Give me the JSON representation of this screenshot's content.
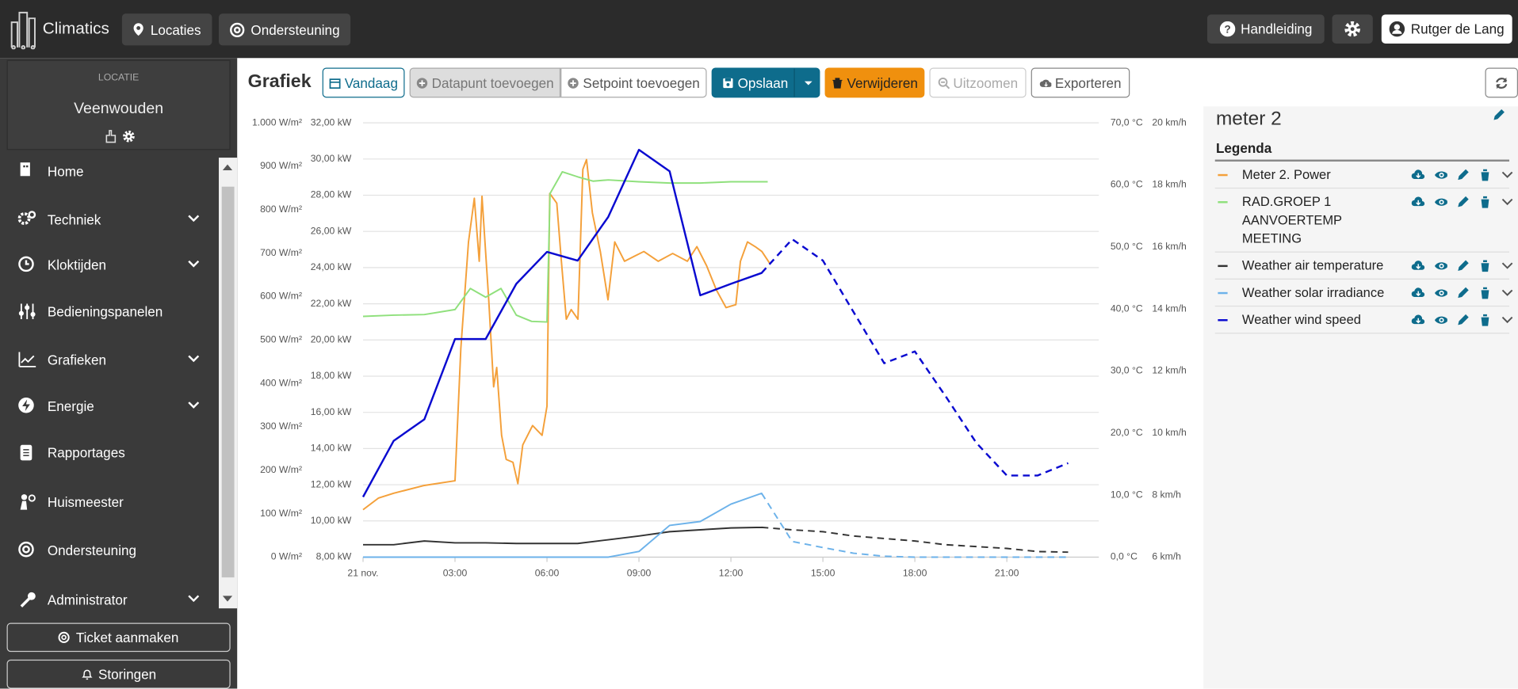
{
  "header": {
    "brand": "Climatics",
    "nav": [
      "Locaties",
      "Ondersteuning"
    ],
    "help": "Handleiding",
    "user": "Rutger de Lang"
  },
  "sidebar": {
    "location_label": "LOCATIE",
    "location": "Veenwouden",
    "menu": [
      {
        "label": "Home",
        "expandable": false
      },
      {
        "label": "Techniek",
        "expandable": true
      },
      {
        "label": "Kloktijden",
        "expandable": true
      },
      {
        "label": "Bedieningspanelen",
        "expandable": false
      },
      {
        "label": "Grafieken",
        "expandable": true
      },
      {
        "label": "Energie",
        "expandable": true
      },
      {
        "label": "Rapportages",
        "expandable": false
      },
      {
        "label": "Huismeester",
        "expandable": false
      },
      {
        "label": "Ondersteuning",
        "expandable": false
      },
      {
        "label": "Administrator",
        "expandable": true
      }
    ],
    "actions": [
      "Ticket aanmaken",
      "Storingen"
    ]
  },
  "toolbar": {
    "title": "Grafiek",
    "buttons": [
      "Vandaag",
      "Datapunt toevoegen",
      "Setpoint toevoegen",
      "Opslaan",
      "Verwijderen",
      "Uitzoomen",
      "Exporteren"
    ]
  },
  "panel": {
    "title": "meter 2",
    "legend_title": "Legenda"
  },
  "chart_data": {
    "type": "line",
    "xlim": [
      0,
      24
    ],
    "xticks": [
      {
        "value": 0,
        "label": "21 nov."
      },
      {
        "value": 3,
        "label": "03:00"
      },
      {
        "value": 6,
        "label": "06:00"
      },
      {
        "value": 9,
        "label": "09:00"
      },
      {
        "value": 12,
        "label": "12:00"
      },
      {
        "value": 15,
        "label": "15:00"
      },
      {
        "value": 18,
        "label": "18:00"
      },
      {
        "value": 21,
        "label": "21:00"
      }
    ],
    "grid_axis": 1,
    "axes": [
      {
        "side": "left",
        "lim": [
          0,
          1000
        ],
        "ticks": [
          {
            "value": 0,
            "label": "0 W/m²"
          },
          {
            "value": 100,
            "label": "100 W/m²"
          },
          {
            "value": 200,
            "label": "200 W/m²"
          },
          {
            "value": 300,
            "label": "300 W/m²"
          },
          {
            "value": 400,
            "label": "400 W/m²"
          },
          {
            "value": 500,
            "label": "500 W/m²"
          },
          {
            "value": 600,
            "label": "600 W/m²"
          },
          {
            "value": 700,
            "label": "700 W/m²"
          },
          {
            "value": 800,
            "label": "800 W/m²"
          },
          {
            "value": 900,
            "label": "900 W/m²"
          },
          {
            "value": 1000,
            "label": "1.000 W/m²"
          }
        ]
      },
      {
        "side": "left",
        "lim": [
          8,
          32
        ],
        "ticks": [
          {
            "value": 8,
            "label": "8,00 kW"
          },
          {
            "value": 10,
            "label": "10,00 kW"
          },
          {
            "value": 12,
            "label": "12,00 kW"
          },
          {
            "value": 14,
            "label": "14,00 kW"
          },
          {
            "value": 16,
            "label": "16,00 kW"
          },
          {
            "value": 18,
            "label": "18,00 kW"
          },
          {
            "value": 20,
            "label": "20,00 kW"
          },
          {
            "value": 22,
            "label": "22,00 kW"
          },
          {
            "value": 24,
            "label": "24,00 kW"
          },
          {
            "value": 26,
            "label": "26,00 kW"
          },
          {
            "value": 28,
            "label": "28,00 kW"
          },
          {
            "value": 30,
            "label": "30,00 kW"
          },
          {
            "value": 32,
            "label": "32,00 kW"
          }
        ]
      },
      {
        "side": "right",
        "lim": [
          0,
          70
        ],
        "ticks": [
          {
            "value": 0,
            "label": "0,0 °C"
          },
          {
            "value": 10,
            "label": "10,0 °C"
          },
          {
            "value": 20,
            "label": "20,0 °C"
          },
          {
            "value": 30,
            "label": "30,0 °C"
          },
          {
            "value": 40,
            "label": "40,0 °C"
          },
          {
            "value": 50,
            "label": "50,0 °C"
          },
          {
            "value": 60,
            "label": "60,0 °C"
          },
          {
            "value": 70,
            "label": "70,0 °C"
          }
        ]
      },
      {
        "side": "right",
        "lim": [
          6,
          20
        ],
        "ticks": [
          {
            "value": 6,
            "label": "6 km/h"
          },
          {
            "value": 8,
            "label": "8 km/h"
          },
          {
            "value": 10,
            "label": "10 km/h"
          },
          {
            "value": 12,
            "label": "12 km/h"
          },
          {
            "value": 14,
            "label": "14 km/h"
          },
          {
            "value": 16,
            "label": "16 km/h"
          },
          {
            "value": 18,
            "label": "18 km/h"
          },
          {
            "value": 20,
            "label": "20 km/h"
          }
        ]
      }
    ],
    "series": [
      {
        "name": "Meter 2. Power",
        "color": "#f4a03a",
        "axis": 1,
        "x": [
          0,
          0.5,
          1,
          2,
          3,
          3.19,
          3.44,
          3.63,
          3.79,
          3.88,
          4.1,
          4.26,
          4.36,
          4.52,
          4.67,
          4.89,
          5.05,
          5.21,
          5.53,
          5.84,
          6.0,
          6.09,
          6.32,
          6.47,
          6.63,
          6.79,
          7.01,
          7.17,
          7.29,
          7.48,
          7.74,
          7.99,
          8.21,
          8.53,
          8.84,
          9.16,
          9.63,
          10.1,
          10.58,
          10.89,
          11.21,
          11.53,
          11.84,
          12.16,
          12.31,
          12.54,
          12.79,
          13.01,
          13.26
        ],
        "values": [
          10.62,
          11.26,
          11.53,
          11.96,
          12.22,
          19.54,
          25.42,
          27.83,
          24.35,
          27.94,
          22.22,
          17.41,
          18.48,
          14.73,
          13.4,
          13.24,
          12.06,
          14.2,
          15.27,
          14.73,
          16.34,
          28.1,
          27.56,
          24.35,
          21.15,
          21.68,
          21.15,
          29.43,
          29.97,
          27.03,
          24.89,
          22.22,
          25.42,
          24.35,
          24.62,
          24.89,
          24.35,
          24.78,
          24.35,
          25.16,
          24.09,
          22.75,
          21.79,
          21.95,
          24.35,
          25.42,
          25.16,
          24.89,
          24.25
        ]
      },
      {
        "name": "RAD.GROEP 1 AANVOERTEMP MEETING",
        "color": "#8fe07c",
        "axis": 2,
        "x": [
          0,
          1,
          2,
          3,
          3.5,
          4,
          4.5,
          5,
          5.5,
          6,
          6.1,
          6.5,
          7,
          7.5,
          8,
          9,
          10,
          11,
          12,
          13.2
        ],
        "values": [
          38.8,
          39.0,
          39.1,
          39.9,
          43.3,
          41.9,
          43.3,
          39.0,
          38.0,
          37.9,
          58.6,
          62.1,
          61.3,
          60.6,
          60.8,
          60.5,
          60.3,
          60.3,
          60.5,
          60.5
        ]
      },
      {
        "name": "Weather air temperature",
        "color": "#333333",
        "axis": 2,
        "forecast_from": 13,
        "x": [
          0,
          1,
          2,
          3,
          4,
          5,
          6,
          7,
          8,
          9,
          10,
          11,
          12,
          13,
          14,
          15,
          16,
          17,
          18,
          19,
          20,
          21,
          22,
          23
        ],
        "values": [
          2.0,
          2.0,
          2.6,
          2.3,
          2.3,
          2.2,
          2.2,
          2.2,
          2.8,
          3.4,
          4.1,
          4.4,
          4.7,
          4.8,
          4.4,
          4.1,
          3.4,
          3.0,
          2.6,
          2.0,
          1.7,
          1.4,
          0.9,
          0.8
        ]
      },
      {
        "name": "Weather solar irradiance",
        "color": "#6cb2ea",
        "axis": 0,
        "forecast_from": 13,
        "x": [
          0,
          1,
          2,
          3,
          4,
          5,
          6,
          7,
          8,
          9,
          10,
          11,
          12,
          13,
          14,
          15,
          16,
          17,
          18,
          19,
          20,
          21,
          22,
          23
        ],
        "values": [
          0,
          0,
          0,
          0,
          0,
          0,
          0,
          0,
          0,
          13,
          73,
          82,
          122,
          147,
          36,
          22,
          9,
          2,
          0,
          0,
          0,
          0,
          0,
          0
        ]
      },
      {
        "name": "Weather wind speed",
        "color": "#0a0ad0",
        "axis": 3,
        "forecast_from": 13,
        "x": [
          0,
          1,
          2,
          3,
          4,
          5,
          6,
          7,
          8,
          9,
          10,
          11,
          12,
          13,
          14,
          15,
          16,
          17,
          18,
          19,
          20,
          21,
          22,
          23
        ],
        "values": [
          7.94,
          9.75,
          10.44,
          13.03,
          13.03,
          14.81,
          15.84,
          15.56,
          16.97,
          19.13,
          18.44,
          14.44,
          14.81,
          15.16,
          16.25,
          15.56,
          13.9,
          12.25,
          12.63,
          11.19,
          9.69,
          8.63,
          8.63,
          9.03
        ]
      }
    ]
  }
}
